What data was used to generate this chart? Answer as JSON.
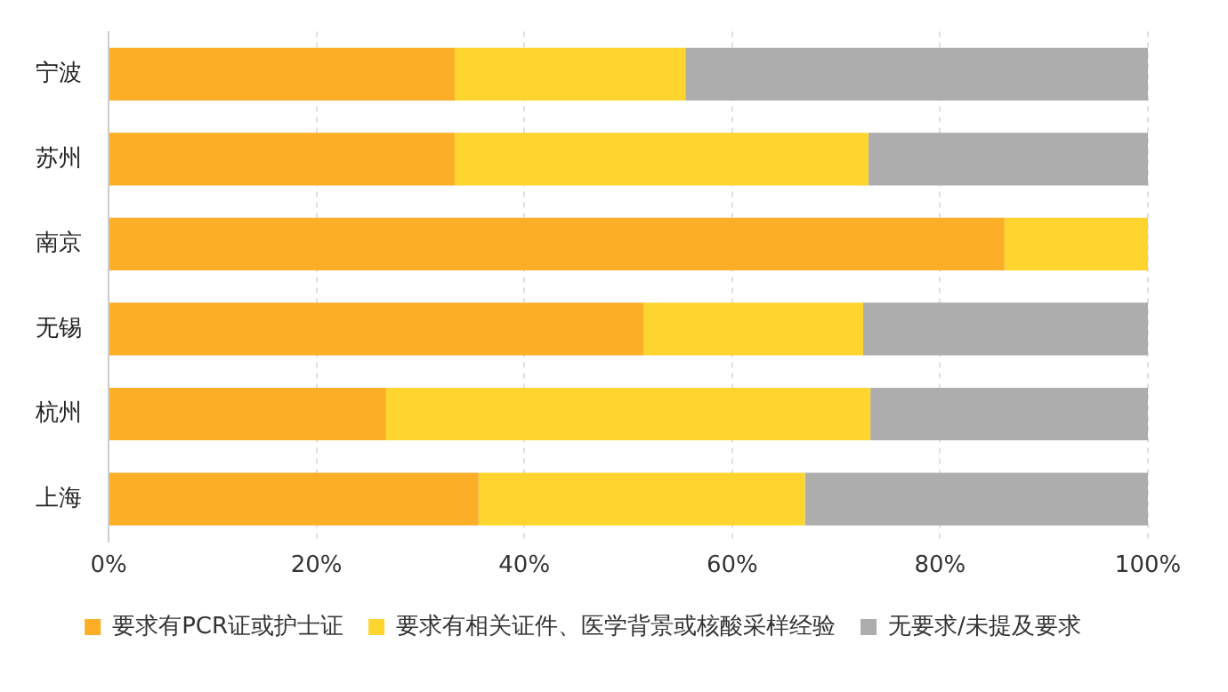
{
  "chart_data": {
    "type": "bar",
    "orientation": "horizontal",
    "stacked": true,
    "categories": [
      "宁波",
      "苏州",
      "南京",
      "无锡",
      "杭州",
      "上海"
    ],
    "series": [
      {
        "name": "要求有PCR证或护士证",
        "color": "#fcae27",
        "values": [
          33.3,
          33.3,
          86.2,
          51.5,
          26.7,
          35.6
        ]
      },
      {
        "name": "要求有相关证件、医学背景或核酸采样经验",
        "color": "#fed52e",
        "values": [
          22.2,
          39.8,
          13.8,
          21.1,
          46.6,
          31.4
        ]
      },
      {
        "name": "无要求/未提及要求",
        "color": "#adadad",
        "values": [
          44.5,
          26.9,
          null,
          27.4,
          26.7,
          33.0
        ]
      }
    ],
    "xlim": [
      0,
      100
    ],
    "xticks": [
      {
        "value": 0,
        "label": "0%"
      },
      {
        "value": 20,
        "label": "20%"
      },
      {
        "value": 40,
        "label": "40%"
      },
      {
        "value": 60,
        "label": "60%"
      },
      {
        "value": 80,
        "label": "80%"
      },
      {
        "value": 100,
        "label": "100%"
      }
    ],
    "grid": "x",
    "legend": "bottom"
  }
}
